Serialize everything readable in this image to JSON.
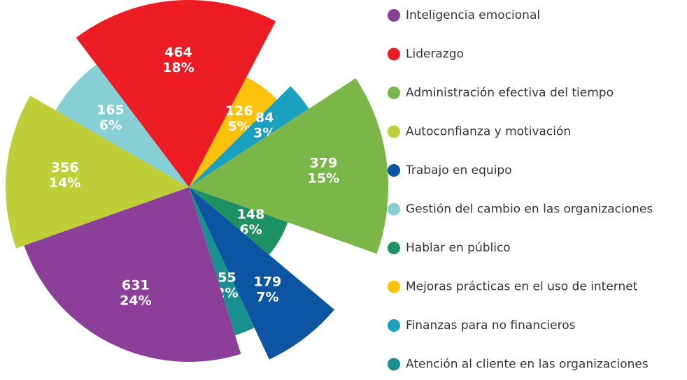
{
  "chart_data": {
    "type": "pie",
    "categories": [
      "Inteligencia emocional",
      "Liderazgo",
      "Administración efectiva del tiempo",
      "Autoconfianza y motivación",
      "Trabajo en equipo",
      "Gestión del cambio en las organizaciones",
      "Hablar en público",
      "Mejoras prácticas en el uso de internet",
      "Finanzas para no financieros",
      "Atención al cliente en las organizaciones"
    ],
    "values": [
      631,
      464,
      379,
      356,
      179,
      165,
      148,
      126,
      84,
      55
    ],
    "percents": [
      24,
      18,
      15,
      14,
      7,
      6,
      6,
      5,
      3,
      2
    ],
    "percent_labels": [
      "24%",
      "18%",
      "15%",
      "14%",
      "7%",
      "6%",
      "6%",
      "5%",
      "3%",
      "2%"
    ],
    "colors": [
      "#8b3f98",
      "#ec1c24",
      "#7ab648",
      "#bfcf3a",
      "#0d55a3",
      "#86cfd5",
      "#1e9163",
      "#fcc20e",
      "#1ca0bf",
      "#1a8f8f"
    ],
    "legend": "right"
  }
}
